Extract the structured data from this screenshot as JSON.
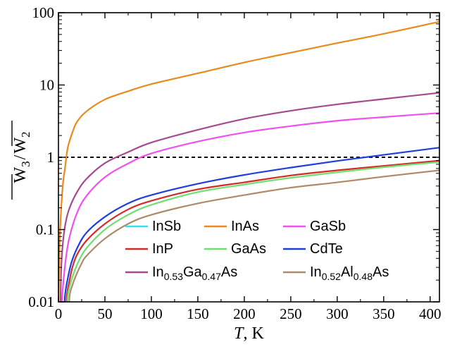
{
  "chart_data": {
    "type": "line",
    "xlabel": {
      "italic": "T",
      "rest": ", K"
    },
    "ylabel": {
      "numerator": "W",
      "numerator_sub": "3",
      "denominator": "W",
      "denominator_sub": "2"
    },
    "xlim": [
      0,
      410
    ],
    "ylim": [
      0.01,
      100
    ],
    "yscale": "log",
    "x_ticks": [
      0,
      50,
      100,
      150,
      200,
      250,
      300,
      350,
      400
    ],
    "x_tick_labels": [
      "0",
      "50",
      "100",
      "150",
      "200",
      "250",
      "300",
      "350",
      "400"
    ],
    "y_ticks": [
      0.01,
      0.1,
      1,
      10,
      100
    ],
    "y_tick_labels": [
      "0.01",
      "0.1",
      "1",
      "10",
      "100"
    ],
    "grid": false,
    "legend_position": "bottom-right",
    "reference_line": {
      "y": 1,
      "style": "dashed",
      "color": "#000000"
    },
    "series": [
      {
        "name": "InSb",
        "color": "#33e0f0",
        "x": [],
        "y": []
      },
      {
        "name": "InAs",
        "color": "#e88a1c",
        "x": [
          1,
          3,
          5,
          7,
          10,
          15,
          20,
          30,
          50,
          75,
          100,
          150,
          200,
          250,
          300,
          350,
          410
        ],
        "y": [
          0.05,
          0.2,
          0.45,
          0.7,
          1.35,
          2.2,
          3.1,
          4.3,
          6.3,
          8.2,
          10.3,
          14.5,
          20.5,
          28,
          38,
          51,
          75
        ]
      },
      {
        "name": "GaSb",
        "color": "#f050f0",
        "x": [
          4,
          8,
          12,
          20,
          30,
          50,
          75,
          100,
          150,
          200,
          250,
          300,
          350,
          410
        ],
        "y": [
          0.012,
          0.04,
          0.08,
          0.17,
          0.29,
          0.53,
          0.82,
          1.13,
          1.65,
          2.2,
          2.7,
          3.2,
          3.6,
          4.1
        ]
      },
      {
        "name": "InP",
        "color": "#d42a2a",
        "x": [
          9,
          12,
          15,
          20,
          30,
          50,
          75,
          100,
          150,
          200,
          250,
          300,
          350,
          410
        ],
        "y": [
          0.012,
          0.02,
          0.03,
          0.045,
          0.07,
          0.12,
          0.19,
          0.25,
          0.36,
          0.45,
          0.56,
          0.66,
          0.76,
          0.9
        ]
      },
      {
        "name": "GaAs",
        "color": "#6ee06e",
        "x": [
          10,
          13,
          17,
          22,
          30,
          50,
          75,
          100,
          150,
          200,
          250,
          300,
          350,
          410
        ],
        "y": [
          0.012,
          0.018,
          0.026,
          0.037,
          0.055,
          0.1,
          0.16,
          0.22,
          0.33,
          0.42,
          0.52,
          0.62,
          0.73,
          0.86
        ]
      },
      {
        "name": "CdTe",
        "color": "#1f3ee0",
        "x": [
          7,
          10,
          14,
          20,
          30,
          50,
          75,
          100,
          150,
          200,
          250,
          300,
          350,
          410
        ],
        "y": [
          0.012,
          0.021,
          0.035,
          0.055,
          0.09,
          0.15,
          0.23,
          0.3,
          0.43,
          0.57,
          0.72,
          0.89,
          1.08,
          1.36
        ]
      },
      {
        "name": "In₀.₅₃Ga₀.₄₇As",
        "label": {
          "parts": [
            [
              "In",
              ""
            ],
            [
              "0.53",
              "sub"
            ],
            [
              "Ga",
              ""
            ],
            [
              "0.47",
              "sub"
            ],
            [
              "As",
              ""
            ]
          ]
        },
        "color": "#a64a8e",
        "x": [
          3,
          5,
          8,
          12,
          20,
          30,
          50,
          75,
          100,
          150,
          200,
          250,
          300,
          350,
          410
        ],
        "y": [
          0.03,
          0.07,
          0.13,
          0.2,
          0.33,
          0.5,
          0.83,
          1.18,
          1.6,
          2.4,
          3.4,
          4.4,
          5.4,
          6.4,
          7.8
        ]
      },
      {
        "name": "In₀.₅₂Al₀.₄₈As",
        "label": {
          "parts": [
            [
              "In",
              ""
            ],
            [
              "0.52",
              "sub"
            ],
            [
              "Al",
              ""
            ],
            [
              "0.48",
              "sub"
            ],
            [
              "As",
              ""
            ]
          ]
        },
        "color": "#b08a68",
        "x": [
          12,
          15,
          20,
          25,
          30,
          50,
          75,
          100,
          150,
          200,
          250,
          300,
          350,
          410
        ],
        "y": [
          0.012,
          0.017,
          0.025,
          0.034,
          0.043,
          0.075,
          0.12,
          0.16,
          0.23,
          0.3,
          0.38,
          0.45,
          0.54,
          0.66
        ]
      }
    ],
    "legend_layout": [
      [
        "InSb",
        "InAs",
        "GaSb"
      ],
      [
        "InP",
        "GaAs",
        "CdTe"
      ],
      [
        "In₀.₅₃Ga₀.₄₇As",
        "In₀.₅₂Al₀.₄₈As"
      ]
    ]
  }
}
